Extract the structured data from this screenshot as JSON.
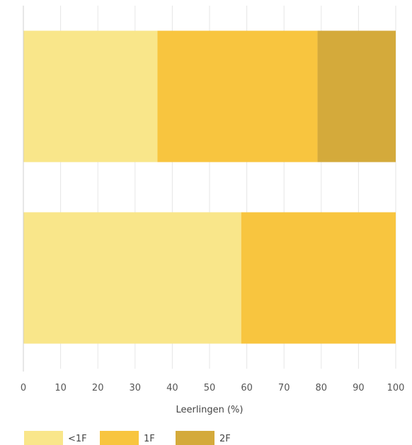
{
  "chart_data": {
    "type": "bar",
    "orientation": "horizontal",
    "stacked": true,
    "categories": [
      "",
      ""
    ],
    "series": [
      {
        "name": "<1F",
        "values": [
          36,
          58.5
        ],
        "color": "#F9E68A"
      },
      {
        "name": "1F",
        "values": [
          43,
          41.5
        ],
        "color": "#F8C53F"
      },
      {
        "name": "2F",
        "values": [
          21,
          0
        ],
        "color": "#D4AA3B"
      }
    ],
    "xlabel": "Leerlingen (%)",
    "ylabel": "",
    "xlim": [
      0,
      100
    ],
    "xticks": [
      0,
      10,
      20,
      30,
      40,
      50,
      60,
      70,
      80,
      90,
      100
    ],
    "grid": true,
    "legend_position": "bottom"
  }
}
